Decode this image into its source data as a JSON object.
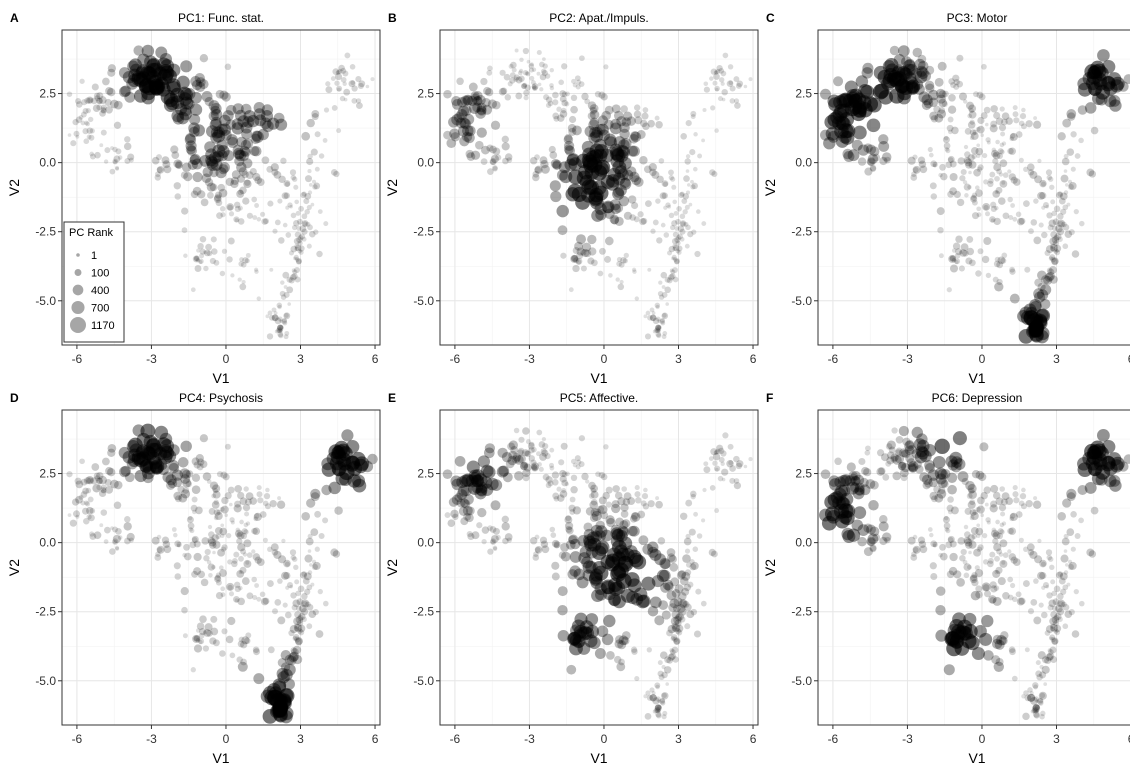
{
  "chart_data": {
    "type": "scatter",
    "xlabel": "V1",
    "ylabel": "V2",
    "xlim": [
      -6.6,
      6.2
    ],
    "ylim": [
      -6.6,
      4.8
    ],
    "xticks": [
      -6,
      -3,
      0,
      3,
      6
    ],
    "yticks": [
      -5.0,
      -2.5,
      0.0,
      2.5
    ],
    "xtick_labels": [
      "-6",
      "-3",
      "0",
      "3",
      "6"
    ],
    "ytick_labels": [
      "-5.0",
      "-2.5",
      "0.0",
      "2.5"
    ],
    "grid": true,
    "legend": {
      "title": "PC Rank",
      "placement": "bottom-left of panel A",
      "entries": [
        {
          "label": "1",
          "value": 1
        },
        {
          "label": "100",
          "value": 100
        },
        {
          "label": "400",
          "value": 400
        },
        {
          "label": "700",
          "value": 700
        },
        {
          "label": "1170",
          "value": 1170
        }
      ]
    },
    "point_color": "#000000",
    "panels": [
      {
        "letter": "A",
        "title": "PC1: Func. stat.",
        "dark_regions": [
          [
            -3.2,
            3.2
          ],
          [
            -2.2,
            2.6
          ],
          [
            -0.5,
            0.5
          ],
          [
            1.8,
            1.8
          ]
        ]
      },
      {
        "letter": "B",
        "title": "PC2: Apat./Impuls.",
        "dark_regions": [
          [
            -0.5,
            -0.5
          ],
          [
            0.3,
            0.5
          ],
          [
            -1.0,
            -1.6
          ],
          [
            -5.5,
            1.5
          ]
        ]
      },
      {
        "letter": "C",
        "title": "PC3: Motor",
        "dark_regions": [
          [
            -5.5,
            1.5
          ],
          [
            -3.5,
            2.8
          ],
          [
            4.7,
            3.0
          ],
          [
            2.0,
            -6.0
          ]
        ]
      },
      {
        "letter": "D",
        "title": "PC4: Psychosis",
        "dark_regions": [
          [
            4.8,
            2.8
          ],
          [
            2.0,
            -5.8
          ],
          [
            -3.0,
            3.5
          ]
        ]
      },
      {
        "letter": "E",
        "title": "PC5: Affective.",
        "dark_regions": [
          [
            0.0,
            -0.5
          ],
          [
            -5.0,
            2.5
          ],
          [
            -1.0,
            -3.5
          ],
          [
            1.5,
            -1.5
          ]
        ]
      },
      {
        "letter": "F",
        "title": "PC6: Depression",
        "dark_regions": [
          [
            -1.5,
            3.8
          ],
          [
            -0.8,
            -3.6
          ],
          [
            -5.8,
            1.0
          ],
          [
            4.6,
            3.0
          ]
        ]
      }
    ]
  }
}
